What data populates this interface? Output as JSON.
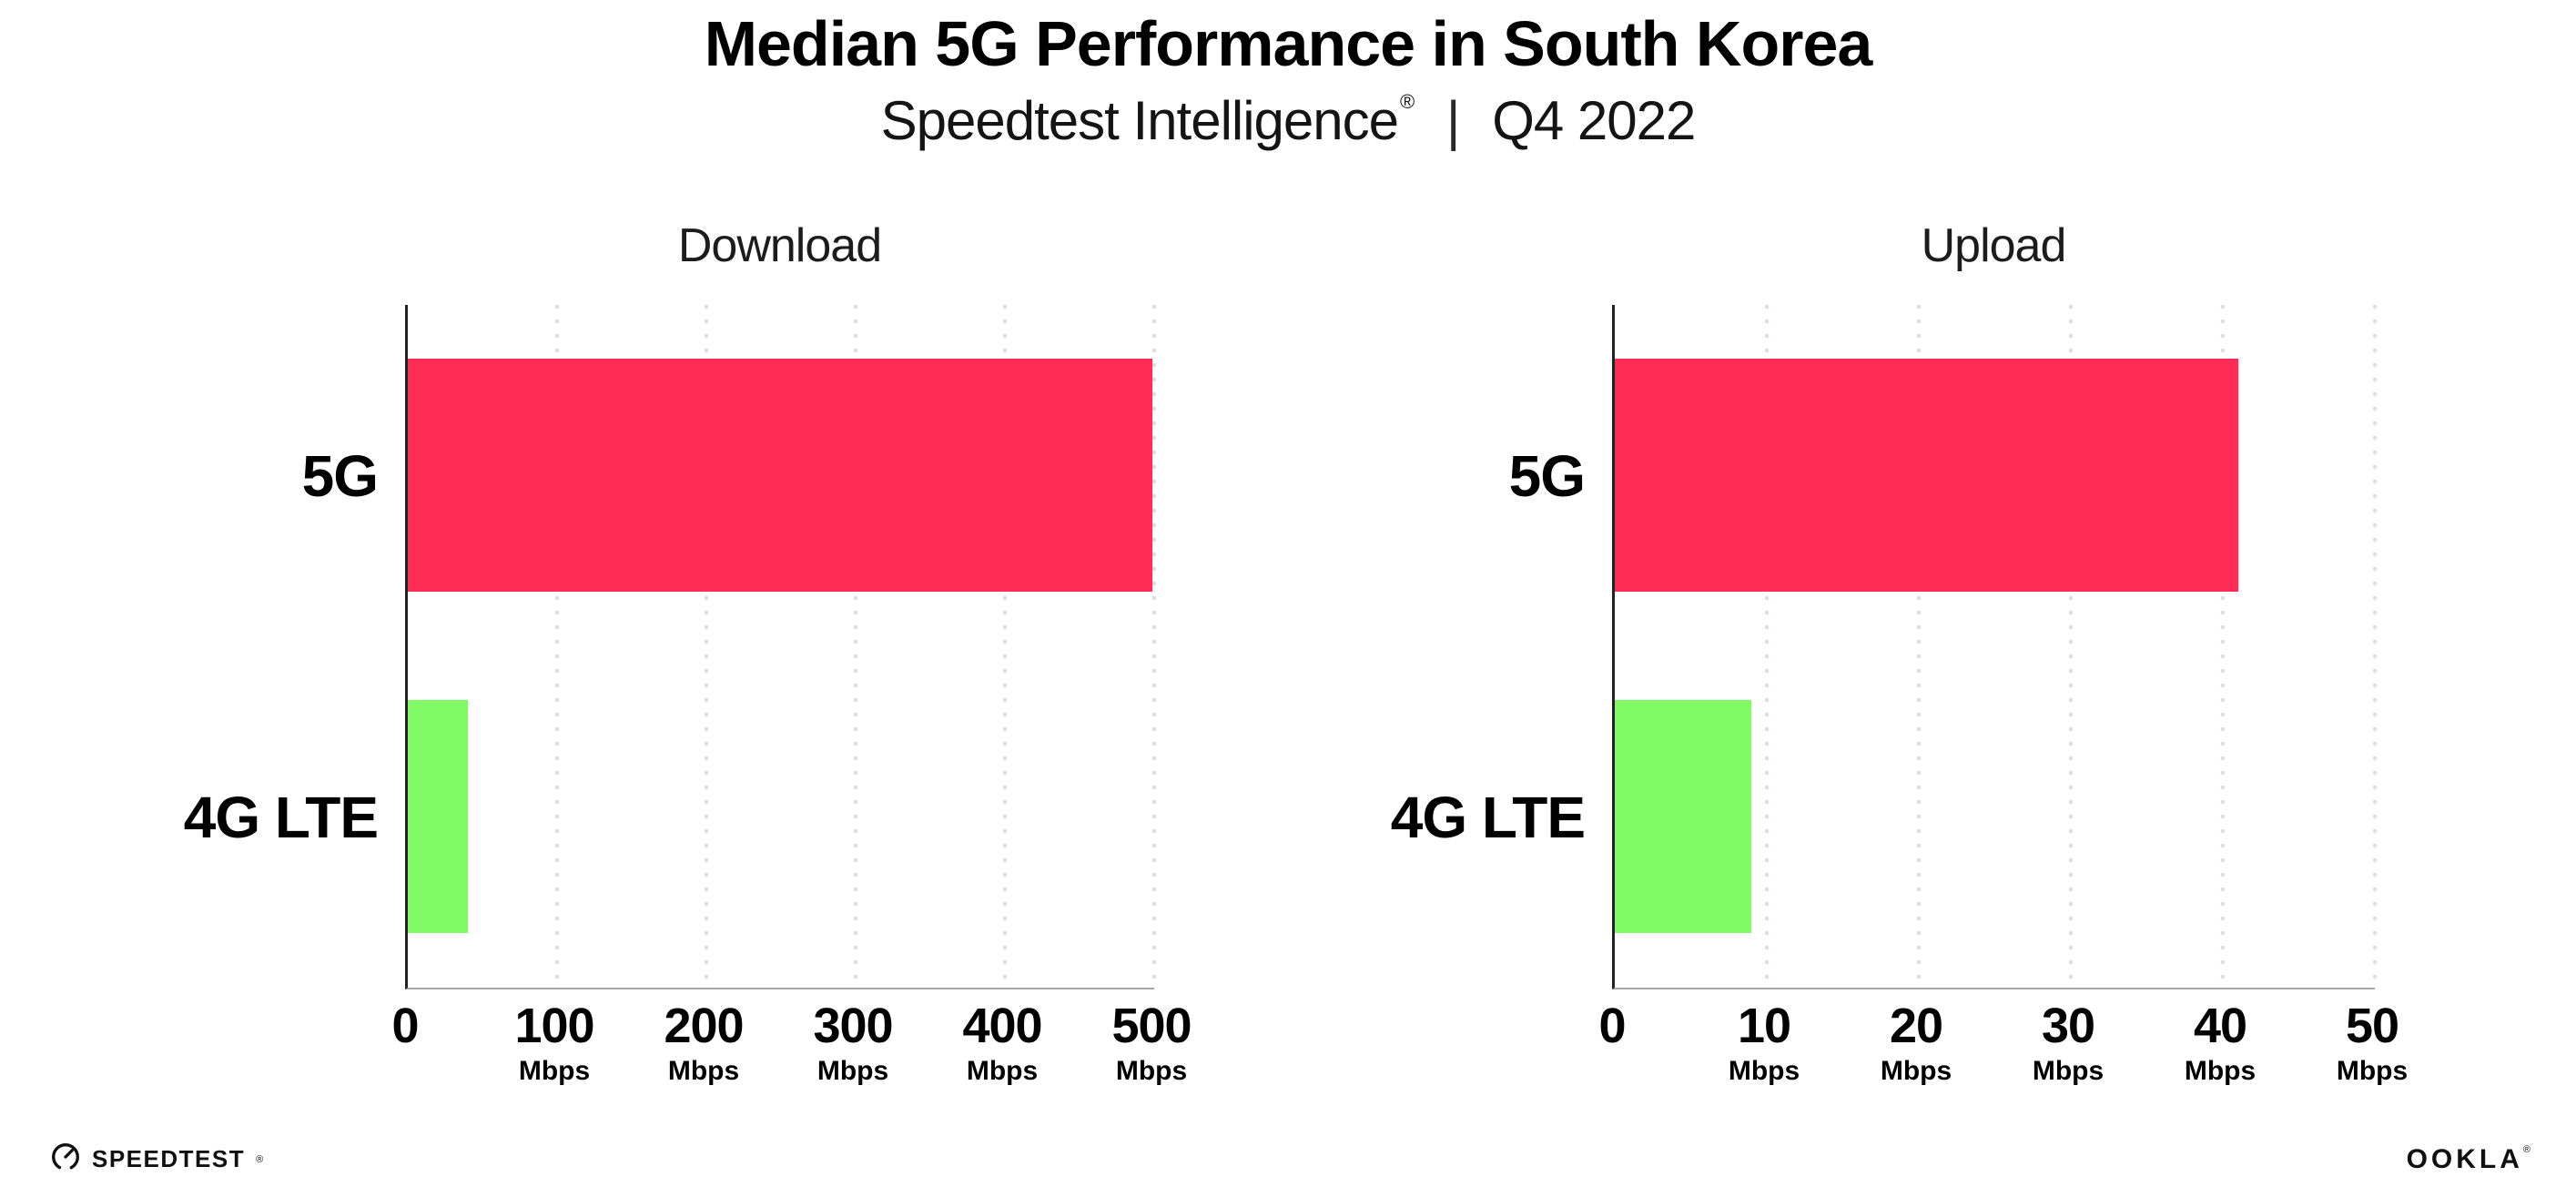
{
  "header": {
    "title": "Median 5G Performance in South Korea",
    "subtitle_product": "Speedtest Intelligence",
    "subtitle_reg_mark": "®",
    "subtitle_separator": "|",
    "subtitle_period": "Q4 2022"
  },
  "chart_data": [
    {
      "type": "bar",
      "orientation": "horizontal",
      "title": "Download",
      "categories": [
        "5G",
        "4G LTE"
      ],
      "values": [
        499,
        40
      ],
      "unit": "Mbps",
      "xlabel": "",
      "ylabel": "",
      "xlim": [
        0,
        500
      ],
      "xticks": [
        0,
        100,
        200,
        300,
        400,
        500
      ],
      "bar_colors": [
        "#ff2d55",
        "#80fb66"
      ],
      "grid": "vertical-dotted",
      "legend": "none"
    },
    {
      "type": "bar",
      "orientation": "horizontal",
      "title": "Upload",
      "categories": [
        "5G",
        "4G LTE"
      ],
      "values": [
        41,
        9
      ],
      "unit": "Mbps",
      "xlabel": "",
      "ylabel": "",
      "xlim": [
        0,
        50
      ],
      "xticks": [
        0,
        10,
        20,
        30,
        40,
        50
      ],
      "bar_colors": [
        "#ff2d55",
        "#80fb66"
      ],
      "grid": "vertical-dotted",
      "legend": "none"
    }
  ],
  "colors": {
    "bar_5g": "#ff2d55",
    "bar_4g_lte": "#80fb66",
    "gridline": "#dcdce6",
    "axis_left": "#222226",
    "axis_bottom": "#a6a6ae",
    "text": "#000000"
  },
  "footer": {
    "speedtest_wordmark": "SPEEDTEST",
    "speedtest_mark": "®",
    "ookla_wordmark": "OOKLA",
    "ookla_mark": "®"
  }
}
